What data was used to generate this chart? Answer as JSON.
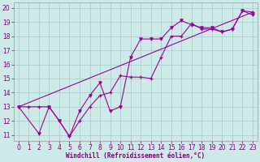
{
  "xlabel": "Windchill (Refroidissement éolien,°C)",
  "background_color": "#ceeae8",
  "grid_color": "#aacfcd",
  "line_color": "#990099",
  "xmin": -0.5,
  "xmax": 23.5,
  "ymin": 10.6,
  "ymax": 20.4,
  "yticks": [
    11,
    12,
    13,
    14,
    15,
    16,
    17,
    18,
    19,
    20
  ],
  "xticks": [
    0,
    1,
    2,
    3,
    4,
    5,
    6,
    7,
    8,
    9,
    10,
    11,
    12,
    13,
    14,
    15,
    16,
    17,
    18,
    19,
    20,
    21,
    22,
    23
  ],
  "line1_x": [
    0,
    1,
    2,
    3,
    4,
    5,
    6,
    7,
    8,
    9,
    10,
    11,
    12,
    13,
    14,
    15,
    16,
    17,
    18,
    19,
    20,
    21,
    22,
    23
  ],
  "line1_y": [
    13,
    13,
    13,
    13,
    12,
    10.9,
    12,
    13,
    13.8,
    14,
    15.2,
    15.1,
    15.1,
    15.0,
    16.5,
    18.0,
    18.0,
    18.9,
    18.5,
    18.5,
    18.3,
    18.5,
    19.8,
    19.7
  ],
  "line2_x": [
    0,
    2,
    3,
    4,
    5,
    6,
    7,
    8,
    9,
    10,
    11,
    12,
    13,
    14,
    15,
    16,
    17,
    18,
    19,
    20,
    21,
    22,
    23
  ],
  "line2_y": [
    13,
    11.1,
    13,
    12,
    10.9,
    12.7,
    13.8,
    14.7,
    12.7,
    13.0,
    16.5,
    17.8,
    17.8,
    17.8,
    18.6,
    19.1,
    18.8,
    18.6,
    18.6,
    18.3,
    18.5,
    19.8,
    19.5
  ],
  "line3_x": [
    0,
    23
  ],
  "line3_y": [
    13.0,
    19.7
  ],
  "tick_color": "#770077",
  "tick_fontsize": 5.5,
  "xlabel_fontsize": 5.5
}
